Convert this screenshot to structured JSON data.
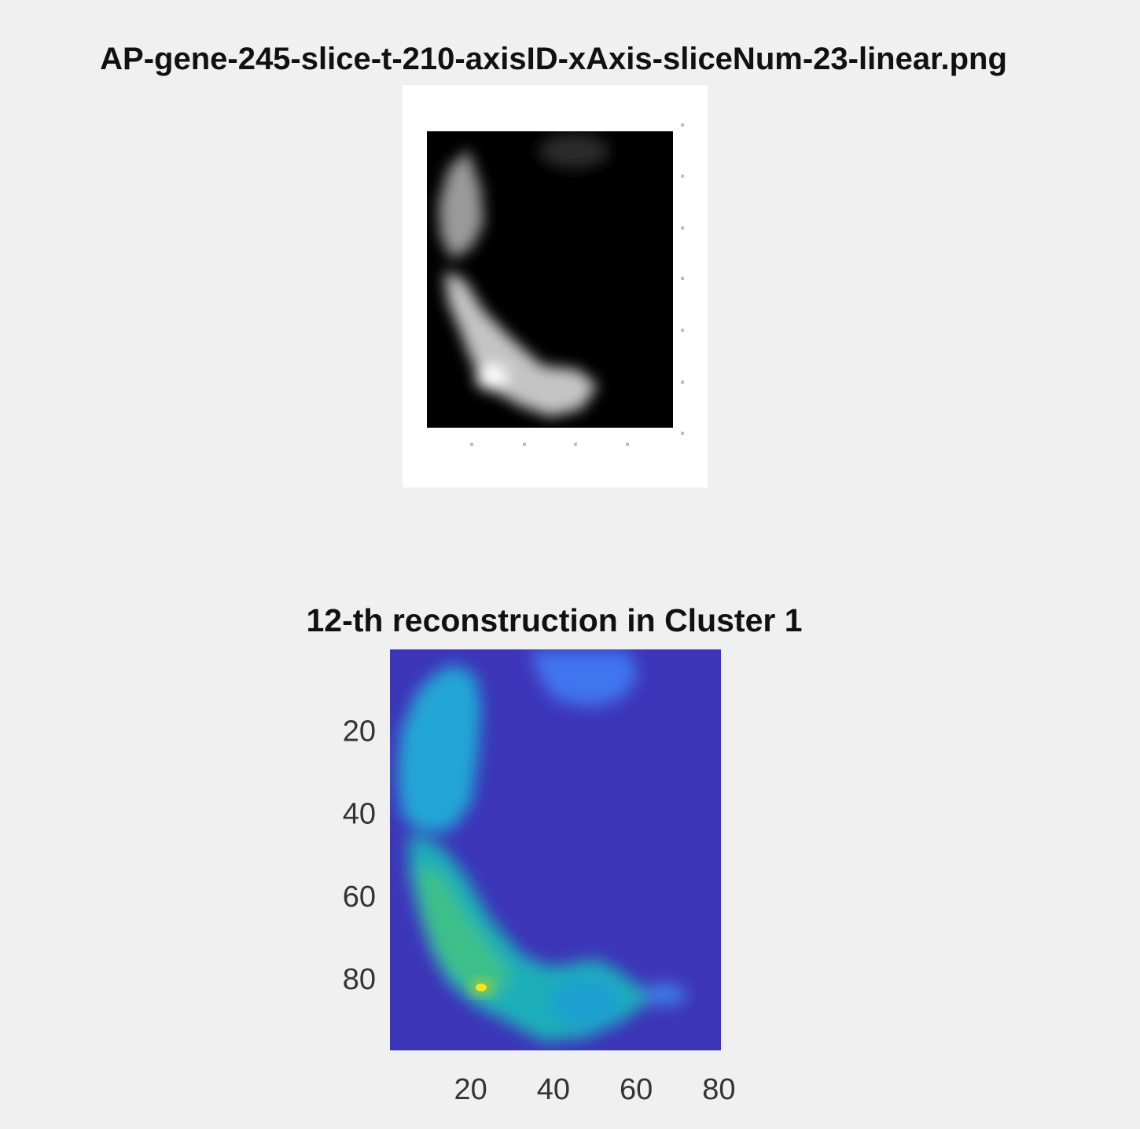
{
  "chart_data": [
    {
      "type": "heatmap",
      "colormap": "gray",
      "title": "AP-gene-245-slice-t-210-axisID-xAxis-sliceNum-23-linear.png",
      "xlabel": "",
      "ylabel": "",
      "xticks": [],
      "yticks": []
    },
    {
      "type": "heatmap",
      "colormap": "parula",
      "title": "12-th reconstruction in Cluster 1",
      "xlabel": "",
      "ylabel": "",
      "xlim": [
        0.5,
        80.5
      ],
      "ylim": [
        0.5,
        97.5
      ],
      "xticks": [
        20,
        40,
        60,
        80
      ],
      "yticks": [
        20,
        40,
        60,
        80
      ],
      "xtick_labels": [
        "20",
        "40",
        "60",
        "80"
      ],
      "ytick_labels": [
        "20",
        "40",
        "60",
        "80"
      ],
      "background_color": "#3d35b8"
    }
  ]
}
